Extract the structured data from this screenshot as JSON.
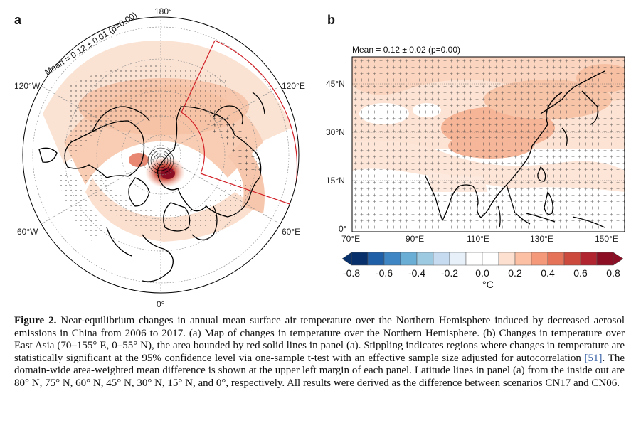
{
  "panel_a": {
    "letter": "a",
    "mean_text": "Mean = 0.12 ± 0.01 (p=0.00)",
    "lon_labels": {
      "top": "180°",
      "left_top": "120°W",
      "right_top": "120°E",
      "left_bottom": "60°W",
      "right_bottom": "60°E",
      "bottom": "0°"
    }
  },
  "panel_b": {
    "letter": "b",
    "mean_text": "Mean = 0.12 ± 0.02 (p=0.00)",
    "y_ticks": [
      "45°N",
      "30°N",
      "15°N",
      "0°"
    ],
    "x_ticks": [
      "70°E",
      "90°E",
      "110°E",
      "130°E",
      "150°E"
    ]
  },
  "colorbar": {
    "ticks": [
      "-0.8",
      "-0.6",
      "-0.4",
      "-0.2",
      "0.0",
      "0.2",
      "0.4",
      "0.6",
      "0.8"
    ],
    "unit": "°C",
    "colors": [
      "#08306b",
      "#1f5fa8",
      "#3e86c4",
      "#6aaed6",
      "#9ecae1",
      "#c6dbef",
      "#e7f0f8",
      "#ffffff",
      "#ffffff",
      "#fde0cf",
      "#fcc0a4",
      "#f49a7a",
      "#e4735a",
      "#cb4a3d",
      "#b02530",
      "#8b0e25"
    ]
  },
  "caption": {
    "label": "Figure 2.",
    "text_before_cite": " Near-equilibrium changes in annual mean surface air temperature over the Northern Hemisphere induced by decreased aerosol emissions in China from 2006 to 2017. (a) Map of changes in temperature over the Northern Hemisphere. (b) Changes in temperature over East Asia (70–155° E, 0–55° N), the area bounded by red solid lines in panel (a). Stippling indicates regions where changes in temperature are statistically significant at the 95% confidence level via one-sample t-test with an effective sample size adjusted for autocorrelation ",
    "cite": "[51]",
    "text_after_cite": ". The domain-wide area-weighted mean difference is shown at the upper left margin of each panel. Latitude lines in panel (a) from the inside out are 80° N, 75° N, 60° N, 45° N, 30° N, 15° N, and 0°, respectively. All results were derived as the difference between scenarios CN17 and CN06."
  }
}
